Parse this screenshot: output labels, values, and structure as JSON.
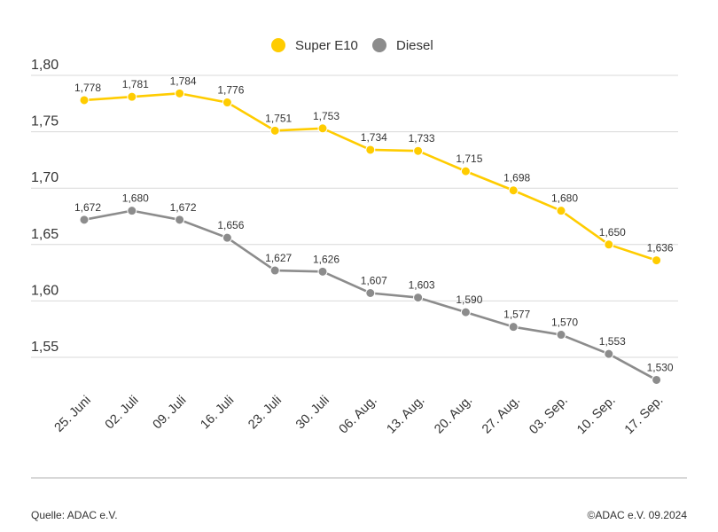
{
  "chart_data": {
    "type": "line",
    "categories": [
      "25. Juni",
      "02. Juli",
      "09. Juli",
      "16. Juli",
      "23. Juli",
      "30. Juli",
      "06. Aug.",
      "13. Aug.",
      "20. Aug.",
      "27. Aug.",
      "03. Sep.",
      "10. Sep.",
      "17. Sep."
    ],
    "series": [
      {
        "name": "Super E10",
        "color": "#ffcc00",
        "values": [
          1.778,
          1.781,
          1.784,
          1.776,
          1.751,
          1.753,
          1.734,
          1.733,
          1.715,
          1.698,
          1.68,
          1.65,
          1.636
        ],
        "labels": [
          "1,778",
          "1,781",
          "1,784",
          "1,776",
          "1,751",
          "1,753",
          "1,734",
          "1,733",
          "1,715",
          "1,698",
          "1,680",
          "1,650",
          "1,636"
        ]
      },
      {
        "name": "Diesel",
        "color": "#8c8c8c",
        "values": [
          1.672,
          1.68,
          1.672,
          1.656,
          1.627,
          1.626,
          1.607,
          1.603,
          1.59,
          1.577,
          1.57,
          1.553,
          1.53
        ],
        "labels": [
          "1,672",
          "1,680",
          "1,672",
          "1,656",
          "1,627",
          "1,626",
          "1,607",
          "1,603",
          "1,590",
          "1,577",
          "1,570",
          "1,553",
          "1,530"
        ]
      }
    ],
    "ylim": [
      1.5,
      1.8
    ],
    "yticks": [
      1.55,
      1.6,
      1.65,
      1.7,
      1.75,
      1.8
    ],
    "ytick_labels": [
      "1,55",
      "1,60",
      "1,65",
      "1,70",
      "1,75",
      "1,80"
    ],
    "grid": true,
    "legend_position": "top-center"
  },
  "footer": {
    "source": "Quelle: ADAC e.V.",
    "copyright": "©ADAC e.V. 09.2024"
  }
}
